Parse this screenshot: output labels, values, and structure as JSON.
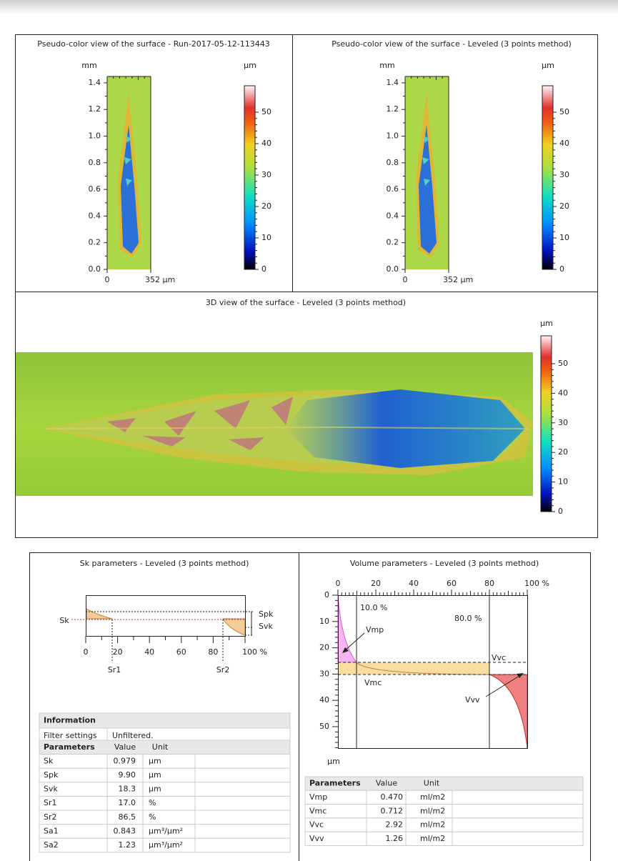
{
  "panels": {
    "pseudo_left": {
      "title": "Pseudo-color view of the surface - Run-2017-05-12-113443",
      "y_unit": "mm",
      "yticks": [
        "0.0",
        "0.2",
        "0.4",
        "0.6",
        "0.8",
        "1.0",
        "1.2",
        "1.4"
      ],
      "xticks": [
        "0",
        "352 µm"
      ],
      "colorbar_unit": "µm",
      "colorbar_ticks": [
        "0",
        "10",
        "20",
        "30",
        "40",
        "50"
      ]
    },
    "pseudo_right": {
      "title": "Pseudo-color view of the surface - Leveled (3 points method)",
      "y_unit": "mm",
      "yticks": [
        "0.0",
        "0.2",
        "0.4",
        "0.6",
        "0.8",
        "1.0",
        "1.2",
        "1.4"
      ],
      "xticks": [
        "0",
        "352 µm"
      ],
      "colorbar_unit": "µm",
      "colorbar_ticks": [
        "0",
        "10",
        "20",
        "30",
        "40",
        "50"
      ]
    },
    "view3d": {
      "title": "3D view of the surface - Leveled (3 points method)",
      "colorbar_unit": "µm",
      "colorbar_ticks": [
        "0",
        "10",
        "20",
        "30",
        "40",
        "50"
      ]
    },
    "sk": {
      "title": "Sk parameters - Leveled (3 points method)",
      "labels": {
        "sk": "Sk",
        "spk": "Spk",
        "svk": "Svk",
        "sr1": "Sr1",
        "sr2": "Sr2"
      },
      "xticks": [
        "0",
        "20",
        "40",
        "60",
        "80",
        "100 %"
      ],
      "info_header": "Information",
      "info_rows": [
        [
          "Filter settings",
          "Unfiltered."
        ]
      ],
      "table": {
        "header": [
          "Parameters",
          "Value",
          "Unit"
        ],
        "rows": [
          [
            "Sk",
            "0.979",
            "µm"
          ],
          [
            "Spk",
            "9.90",
            "µm"
          ],
          [
            "Svk",
            "18.3",
            "µm"
          ],
          [
            "Sr1",
            "17.0",
            "%"
          ],
          [
            "Sr2",
            "86.5",
            "%"
          ],
          [
            "Sa1",
            "0.843",
            "µm³/µm²"
          ],
          [
            "Sa2",
            "1.23",
            "µm³/µm²"
          ]
        ]
      }
    },
    "volume": {
      "title": "Volume parameters - Leveled (3 points method)",
      "xticks": [
        "0",
        "20",
        "40",
        "60",
        "80",
        "100 %"
      ],
      "yticks": [
        "0",
        "10",
        "20",
        "30",
        "40",
        "50"
      ],
      "y_unit": "µm",
      "labels": {
        "p10": "10.0 %",
        "p80": "80.0 %",
        "vmp": "Vmp",
        "vmc": "Vmc",
        "vvc": "Vvc",
        "vvv": "Vvv"
      },
      "table": {
        "header": [
          "Parameters",
          "Value",
          "Unit"
        ],
        "rows": [
          [
            "Vmp",
            "0.470",
            "ml/m2"
          ],
          [
            "Vmc",
            "0.712",
            "ml/m2"
          ],
          [
            "Vvc",
            "2.92",
            "ml/m2"
          ],
          [
            "Vvv",
            "1.26",
            "ml/m2"
          ]
        ]
      }
    }
  }
}
